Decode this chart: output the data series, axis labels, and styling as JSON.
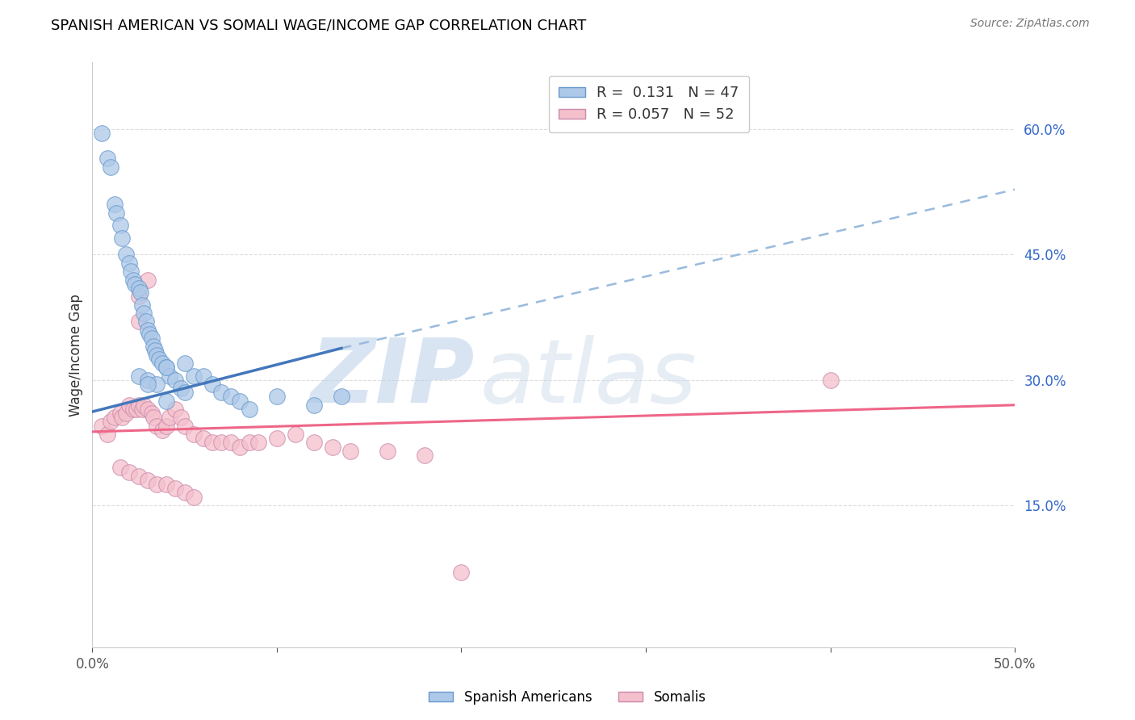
{
  "title": "SPANISH AMERICAN VS SOMALI WAGE/INCOME GAP CORRELATION CHART",
  "source": "Source: ZipAtlas.com",
  "ylabel": "Wage/Income Gap",
  "xlim": [
    0.0,
    0.5
  ],
  "ylim": [
    -0.02,
    0.68
  ],
  "xticks": [
    0.0,
    0.1,
    0.2,
    0.3,
    0.4,
    0.5
  ],
  "xtick_labels_show": [
    "0.0%",
    "",
    "",
    "",
    "",
    "50.0%"
  ],
  "yticks_right": [
    0.15,
    0.3,
    0.45,
    0.6
  ],
  "ytick_right_labels": [
    "15.0%",
    "30.0%",
    "45.0%",
    "60.0%"
  ],
  "legend_R1": "0.131",
  "legend_N1": "47",
  "legend_R2": "0.057",
  "legend_N2": "52",
  "color_blue_fill": "#adc8e8",
  "color_blue_edge": "#6699cc",
  "color_pink_fill": "#f4c0cc",
  "color_pink_edge": "#cc88aa",
  "color_blue_line": "#4477bb",
  "color_pink_line": "#ee6688",
  "color_dashed": "#99bbdd",
  "watermark_ZIP": "ZIP",
  "watermark_atlas": "atlas",
  "watermark_color_ZIP": "#b8cfe8",
  "watermark_color_atlas": "#c8d8e8",
  "background_color": "#ffffff",
  "grid_color": "#dddddd",
  "scatter_blue_x": [
    0.005,
    0.008,
    0.01,
    0.012,
    0.013,
    0.015,
    0.016,
    0.018,
    0.02,
    0.021,
    0.022,
    0.023,
    0.025,
    0.026,
    0.027,
    0.028,
    0.029,
    0.03,
    0.031,
    0.032,
    0.033,
    0.034,
    0.035,
    0.036,
    0.038,
    0.04,
    0.042,
    0.045,
    0.048,
    0.05,
    0.055,
    0.06,
    0.065,
    0.07,
    0.075,
    0.08,
    0.085,
    0.1,
    0.12,
    0.135,
    0.025,
    0.03,
    0.035,
    0.04,
    0.05,
    0.04,
    0.03
  ],
  "scatter_blue_y": [
    0.595,
    0.565,
    0.555,
    0.51,
    0.5,
    0.485,
    0.47,
    0.45,
    0.44,
    0.43,
    0.42,
    0.415,
    0.41,
    0.405,
    0.39,
    0.38,
    0.37,
    0.36,
    0.355,
    0.35,
    0.34,
    0.335,
    0.33,
    0.325,
    0.32,
    0.315,
    0.305,
    0.3,
    0.29,
    0.285,
    0.305,
    0.305,
    0.295,
    0.285,
    0.28,
    0.275,
    0.265,
    0.28,
    0.27,
    0.28,
    0.305,
    0.3,
    0.295,
    0.315,
    0.32,
    0.275,
    0.295
  ],
  "scatter_pink_x": [
    0.005,
    0.008,
    0.01,
    0.012,
    0.015,
    0.016,
    0.018,
    0.02,
    0.022,
    0.024,
    0.025,
    0.027,
    0.028,
    0.03,
    0.032,
    0.033,
    0.035,
    0.038,
    0.04,
    0.042,
    0.045,
    0.048,
    0.05,
    0.055,
    0.06,
    0.065,
    0.07,
    0.075,
    0.08,
    0.085,
    0.09,
    0.1,
    0.11,
    0.12,
    0.13,
    0.14,
    0.16,
    0.18,
    0.4,
    0.025,
    0.015,
    0.02,
    0.025,
    0.03,
    0.035,
    0.04,
    0.045,
    0.05,
    0.055,
    0.2,
    0.025,
    0.03
  ],
  "scatter_pink_y": [
    0.245,
    0.235,
    0.25,
    0.255,
    0.26,
    0.255,
    0.26,
    0.27,
    0.265,
    0.265,
    0.27,
    0.265,
    0.27,
    0.265,
    0.26,
    0.255,
    0.245,
    0.24,
    0.245,
    0.255,
    0.265,
    0.255,
    0.245,
    0.235,
    0.23,
    0.225,
    0.225,
    0.225,
    0.22,
    0.225,
    0.225,
    0.23,
    0.235,
    0.225,
    0.22,
    0.215,
    0.215,
    0.21,
    0.3,
    0.37,
    0.195,
    0.19,
    0.185,
    0.18,
    0.175,
    0.175,
    0.17,
    0.165,
    0.16,
    0.07,
    0.4,
    0.42
  ],
  "blue_trend_x": [
    0.0,
    0.135
  ],
  "blue_trend_y": [
    0.262,
    0.338
  ],
  "dashed_trend_x": [
    0.135,
    0.5
  ],
  "dashed_trend_y": [
    0.338,
    0.528
  ],
  "pink_trend_x": [
    0.0,
    0.5
  ],
  "pink_trend_y": [
    0.238,
    0.27
  ]
}
